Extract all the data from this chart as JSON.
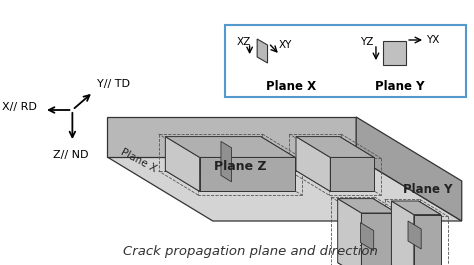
{
  "title": "Crack propagation plane and direction",
  "bg_color": "#ffffff",
  "dark_edge_color": "#333333",
  "inset_border": "#5599cc",
  "plane_z_label": "Plane Z",
  "plane_x_label": "Plane X",
  "plane_y_label": "Plane Y",
  "axis_labels": [
    "Z// ND",
    "X// RD",
    "Y// TD"
  ],
  "inset_labels": [
    "XZ",
    "XY",
    "YZ",
    "YX",
    "Plane X",
    "Plane Y"
  ],
  "title_fontsize": 9.5,
  "label_fontsize": 8.5,
  "small_fontsize": 7.5,
  "slab_top_color": "#d4d4d4",
  "slab_front_color": "#b8b8b8",
  "slab_right_color": "#a0a0a0",
  "specimen_front": "#c8c8c8",
  "specimen_top": "#e0e0e0",
  "specimen_right": "#b0b0b0",
  "notch_color": "#909090"
}
